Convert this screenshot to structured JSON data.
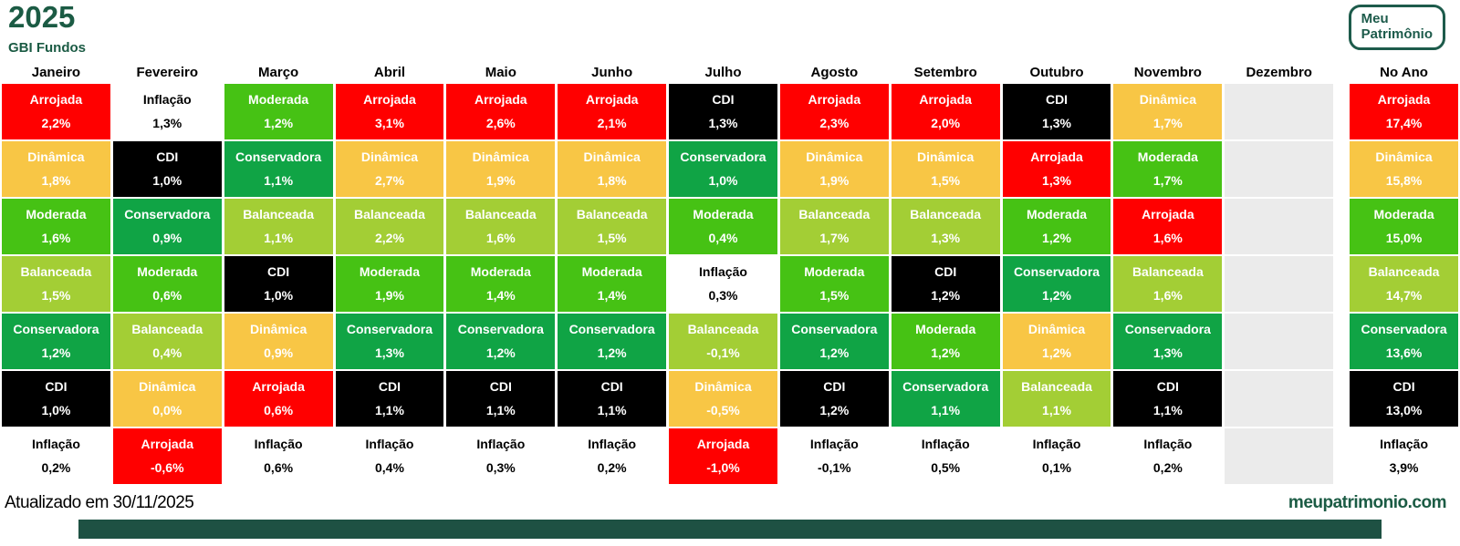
{
  "header": {
    "year": "2025",
    "subtitle": "GBI Fundos",
    "logo_line1": "Meu",
    "logo_line2": "Patrimônio",
    "brand_color": "#1B5B44"
  },
  "footer": {
    "updated": "Atualizado em 30/11/2025",
    "website": "meupatrimonio.com"
  },
  "fund_colors": {
    "Arrojada": {
      "bg": "#FF0000",
      "fg": "#FFFFFF"
    },
    "Dinâmica": {
      "bg": "#F8C645",
      "fg": "#FFFFFF"
    },
    "Moderada": {
      "bg": "#46C214",
      "fg": "#FFFFFF"
    },
    "Balanceada": {
      "bg": "#A3CE35",
      "fg": "#FFFFFF"
    },
    "Conservadora": {
      "bg": "#10A445",
      "fg": "#FFFFFF"
    },
    "CDI": {
      "bg": "#000000",
      "fg": "#FFFFFF"
    },
    "Inflação": {
      "bg": "#FFFFFF",
      "fg": "#000000"
    }
  },
  "empty_cell_color": "#EBEBEB",
  "chart_data": {
    "type": "table",
    "title": "2025",
    "subtitle": "GBI Fundos",
    "description": "Monthly returns ranked by strategy (periodic table of returns)",
    "rows_per_column": 7,
    "columns": [
      {
        "label": "Janeiro",
        "cells": [
          {
            "fund": "Arrojada",
            "value": "2,2%"
          },
          {
            "fund": "Dinâmica",
            "value": "1,8%"
          },
          {
            "fund": "Moderada",
            "value": "1,6%"
          },
          {
            "fund": "Balanceada",
            "value": "1,5%"
          },
          {
            "fund": "Conservadora",
            "value": "1,2%"
          },
          {
            "fund": "CDI",
            "value": "1,0%"
          },
          {
            "fund": "Inflação",
            "value": "0,2%"
          }
        ]
      },
      {
        "label": "Fevereiro",
        "cells": [
          {
            "fund": "Inflação",
            "value": "1,3%"
          },
          {
            "fund": "CDI",
            "value": "1,0%"
          },
          {
            "fund": "Conservadora",
            "value": "0,9%"
          },
          {
            "fund": "Moderada",
            "value": "0,6%"
          },
          {
            "fund": "Balanceada",
            "value": "0,4%"
          },
          {
            "fund": "Dinâmica",
            "value": "0,0%"
          },
          {
            "fund": "Arrojada",
            "value": "-0,6%"
          }
        ]
      },
      {
        "label": "Março",
        "cells": [
          {
            "fund": "Moderada",
            "value": "1,2%"
          },
          {
            "fund": "Conservadora",
            "value": "1,1%"
          },
          {
            "fund": "Balanceada",
            "value": "1,1%"
          },
          {
            "fund": "CDI",
            "value": "1,0%"
          },
          {
            "fund": "Dinâmica",
            "value": "0,9%"
          },
          {
            "fund": "Arrojada",
            "value": "0,6%"
          },
          {
            "fund": "Inflação",
            "value": "0,6%"
          }
        ]
      },
      {
        "label": "Abril",
        "cells": [
          {
            "fund": "Arrojada",
            "value": "3,1%"
          },
          {
            "fund": "Dinâmica",
            "value": "2,7%"
          },
          {
            "fund": "Balanceada",
            "value": "2,2%"
          },
          {
            "fund": "Moderada",
            "value": "1,9%"
          },
          {
            "fund": "Conservadora",
            "value": "1,3%"
          },
          {
            "fund": "CDI",
            "value": "1,1%"
          },
          {
            "fund": "Inflação",
            "value": "0,4%"
          }
        ]
      },
      {
        "label": "Maio",
        "cells": [
          {
            "fund": "Arrojada",
            "value": "2,6%"
          },
          {
            "fund": "Dinâmica",
            "value": "1,9%"
          },
          {
            "fund": "Balanceada",
            "value": "1,6%"
          },
          {
            "fund": "Moderada",
            "value": "1,4%"
          },
          {
            "fund": "Conservadora",
            "value": "1,2%"
          },
          {
            "fund": "CDI",
            "value": "1,1%"
          },
          {
            "fund": "Inflação",
            "value": "0,3%"
          }
        ]
      },
      {
        "label": "Junho",
        "cells": [
          {
            "fund": "Arrojada",
            "value": "2,1%"
          },
          {
            "fund": "Dinâmica",
            "value": "1,8%"
          },
          {
            "fund": "Balanceada",
            "value": "1,5%"
          },
          {
            "fund": "Moderada",
            "value": "1,4%"
          },
          {
            "fund": "Conservadora",
            "value": "1,2%"
          },
          {
            "fund": "CDI",
            "value": "1,1%"
          },
          {
            "fund": "Inflação",
            "value": "0,2%"
          }
        ]
      },
      {
        "label": "Julho",
        "cells": [
          {
            "fund": "CDI",
            "value": "1,3%"
          },
          {
            "fund": "Conservadora",
            "value": "1,0%"
          },
          {
            "fund": "Moderada",
            "value": "0,4%"
          },
          {
            "fund": "Inflação",
            "value": "0,3%"
          },
          {
            "fund": "Balanceada",
            "value": "-0,1%"
          },
          {
            "fund": "Dinâmica",
            "value": "-0,5%"
          },
          {
            "fund": "Arrojada",
            "value": "-1,0%"
          }
        ]
      },
      {
        "label": "Agosto",
        "cells": [
          {
            "fund": "Arrojada",
            "value": "2,3%"
          },
          {
            "fund": "Dinâmica",
            "value": "1,9%"
          },
          {
            "fund": "Balanceada",
            "value": "1,7%"
          },
          {
            "fund": "Moderada",
            "value": "1,5%"
          },
          {
            "fund": "Conservadora",
            "value": "1,2%"
          },
          {
            "fund": "CDI",
            "value": "1,2%"
          },
          {
            "fund": "Inflação",
            "value": "-0,1%"
          }
        ]
      },
      {
        "label": "Setembro",
        "cells": [
          {
            "fund": "Arrojada",
            "value": "2,0%"
          },
          {
            "fund": "Dinâmica",
            "value": "1,5%"
          },
          {
            "fund": "Balanceada",
            "value": "1,3%"
          },
          {
            "fund": "CDI",
            "value": "1,2%"
          },
          {
            "fund": "Moderada",
            "value": "1,2%"
          },
          {
            "fund": "Conservadora",
            "value": "1,1%"
          },
          {
            "fund": "Inflação",
            "value": "0,5%"
          }
        ]
      },
      {
        "label": "Outubro",
        "cells": [
          {
            "fund": "CDI",
            "value": "1,3%"
          },
          {
            "fund": "Arrojada",
            "value": "1,3%"
          },
          {
            "fund": "Moderada",
            "value": "1,2%"
          },
          {
            "fund": "Conservadora",
            "value": "1,2%"
          },
          {
            "fund": "Dinâmica",
            "value": "1,2%"
          },
          {
            "fund": "Balanceada",
            "value": "1,1%"
          },
          {
            "fund": "Inflação",
            "value": "0,1%"
          }
        ]
      },
      {
        "label": "Novembro",
        "cells": [
          {
            "fund": "Dinâmica",
            "value": "1,7%"
          },
          {
            "fund": "Moderada",
            "value": "1,7%"
          },
          {
            "fund": "Arrojada",
            "value": "1,6%"
          },
          {
            "fund": "Balanceada",
            "value": "1,6%"
          },
          {
            "fund": "Conservadora",
            "value": "1,3%"
          },
          {
            "fund": "CDI",
            "value": "1,1%"
          },
          {
            "fund": "Inflação",
            "value": "0,2%"
          }
        ]
      },
      {
        "label": "Dezembro",
        "cells": []
      },
      {
        "label": "No Ano",
        "cells": [
          {
            "fund": "Arrojada",
            "value": "17,4%"
          },
          {
            "fund": "Dinâmica",
            "value": "15,8%"
          },
          {
            "fund": "Moderada",
            "value": "15,0%"
          },
          {
            "fund": "Balanceada",
            "value": "14,7%"
          },
          {
            "fund": "Conservadora",
            "value": "13,6%"
          },
          {
            "fund": "CDI",
            "value": "13,0%"
          },
          {
            "fund": "Inflação",
            "value": "3,9%"
          }
        ]
      }
    ]
  }
}
